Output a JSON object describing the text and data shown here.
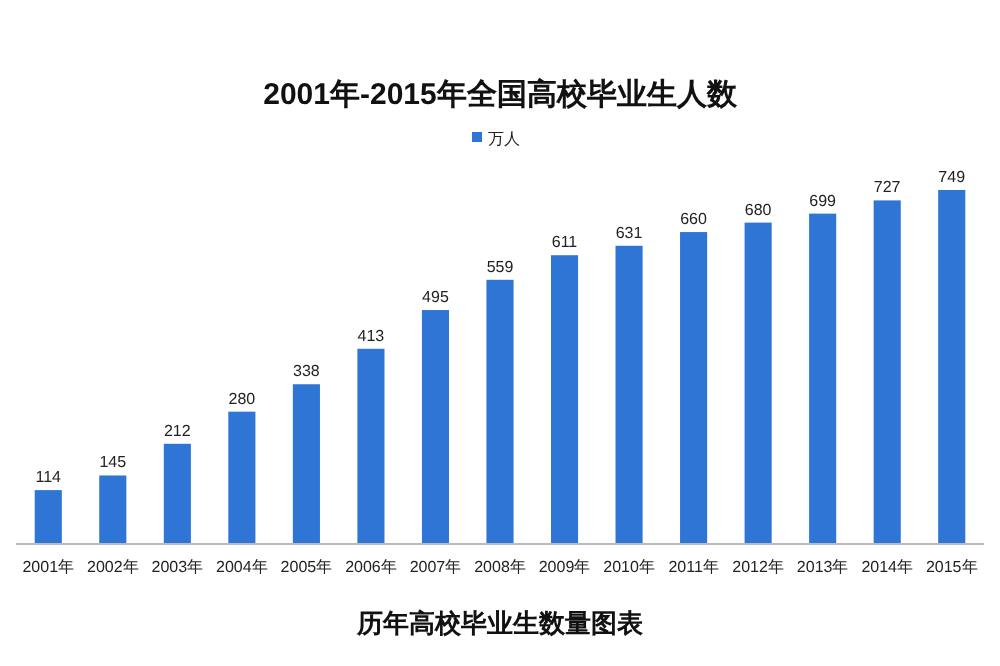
{
  "chart_data": {
    "type": "bar",
    "title": "2001年-2015年全国高校毕业生人数",
    "categories": [
      "2001年",
      "2002年",
      "2003年",
      "2004年",
      "2005年",
      "2006年",
      "2007年",
      "2008年",
      "2009年",
      "2010年",
      "2011年",
      "2012年",
      "2013年",
      "2014年",
      "2015年"
    ],
    "series": [
      {
        "name": "万人",
        "color": "#2e75d6",
        "values": [
          114,
          145,
          212,
          280,
          338,
          413,
          495,
          559,
          611,
          631,
          660,
          680,
          699,
          727,
          749
        ]
      }
    ],
    "data_labels": true,
    "legend": "top",
    "grid": false,
    "annotations": [
      "历年高校毕业生数量图表"
    ]
  }
}
